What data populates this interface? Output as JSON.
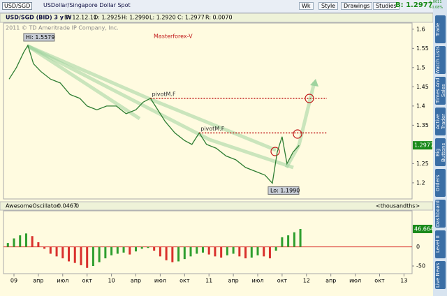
{
  "toolbar": {
    "symbol": "USD/SGD",
    "description": "USDollar/Singapore Dollar Spot",
    "buttons": [
      "Wk",
      "Style",
      "Drawings",
      "Studies"
    ],
    "bid": "B: 1.2977",
    "change": "+.0011",
    "change_pct": "+0.08%"
  },
  "side_tabs": [
    "Trade",
    "Watch Lists",
    "Times And Sales",
    "Active Trader",
    "Big Buttons",
    "Orders",
    "Dashboard",
    "Level II",
    "Live News"
  ],
  "chart_data": [
    {
      "type": "line",
      "title": "Masterforex-V",
      "header": [
        "USD/SGD (BID) 3 y W",
        "D: 12.12.11",
        "O: 1.2925",
        "H: 1.2990",
        "L: 1.2920",
        "C: 1.2977",
        "R: 0.0070"
      ],
      "copyright": "2011 © TD Ameritrade IP Company, Inc.",
      "x": [
        -0.2,
        0.1,
        0.4,
        0.57,
        0.8,
        1.1,
        1.5,
        1.9,
        2.3,
        2.7,
        3.0,
        3.4,
        3.8,
        4.2,
        4.6,
        5.0,
        5.3,
        5.6,
        5.9,
        6.2,
        6.6,
        7.0,
        7.3,
        7.6,
        7.9,
        8.3,
        8.7,
        9.1,
        9.5,
        9.9,
        10.3,
        10.6,
        10.8,
        11.0,
        11.2,
        11.45,
        11.7
      ],
      "values": [
        1.47,
        1.5,
        1.54,
        1.5579,
        1.51,
        1.49,
        1.47,
        1.46,
        1.43,
        1.42,
        1.4,
        1.39,
        1.4,
        1.4,
        1.38,
        1.39,
        1.41,
        1.42,
        1.39,
        1.36,
        1.33,
        1.31,
        1.3,
        1.33,
        1.3,
        1.29,
        1.27,
        1.26,
        1.24,
        1.23,
        1.22,
        1.199,
        1.28,
        1.32,
        1.25,
        1.28,
        1.2977
      ],
      "color": "#2e7d32",
      "ylim": [
        1.158,
        1.616
      ],
      "yticks": [
        1.2,
        1.25,
        1.35,
        1.4,
        1.45,
        1.5,
        1.55,
        1.6
      ],
      "extremes": [
        {
          "label": "Hi: 1.5579",
          "x": 0.57,
          "value": 1.5579
        },
        {
          "label": "Lo: 1.1990",
          "x": 10.6,
          "value": 1.199
        }
      ],
      "pivots": [
        {
          "label": "pivotM.F",
          "x": 5.6,
          "value": 1.42
        },
        {
          "label": "pivotM.F",
          "x": 7.6,
          "value": 1.33
        }
      ]
    },
    {
      "type": "bar",
      "header": [
        "AwesomeOscillator",
        "0.0467",
        "0",
        "<thousandths>"
      ],
      "x": [
        -0.25,
        0,
        0.25,
        0.5,
        0.75,
        1,
        1.25,
        1.5,
        1.75,
        2,
        2.25,
        2.5,
        2.75,
        3,
        3.25,
        3.5,
        3.75,
        4,
        4.25,
        4.5,
        4.75,
        5,
        5.25,
        5.5,
        5.75,
        6,
        6.25,
        6.5,
        6.75,
        7,
        7.25,
        7.5,
        7.75,
        8,
        8.25,
        8.5,
        8.75,
        9,
        9.25,
        9.5,
        9.75,
        10,
        10.25,
        10.5,
        10.75,
        11,
        11.25,
        11.5,
        11.75
      ],
      "values": [
        10,
        22,
        30,
        35,
        28,
        12,
        -5,
        -18,
        -25,
        -30,
        -38,
        -42,
        -48,
        -55,
        -50,
        -40,
        -30,
        -22,
        -18,
        -15,
        -20,
        -12,
        -5,
        -3,
        -10,
        -25,
        -35,
        -40,
        -38,
        -32,
        -25,
        -18,
        -15,
        -20,
        -25,
        -28,
        -22,
        -18,
        -25,
        -30,
        -28,
        -22,
        -25,
        -30,
        -10,
        25,
        30,
        38,
        46.664
      ],
      "up_color": "#2e9e2e",
      "down_color": "#d9302c",
      "ylim": [
        -70,
        94
      ],
      "yticks": [
        -50,
        0
      ],
      "xticks": [
        {
          "value": 0,
          "label": "09"
        },
        {
          "value": 1,
          "label": "апр"
        },
        {
          "value": 2,
          "label": "июл"
        },
        {
          "value": 3,
          "label": "окт"
        },
        {
          "value": 4,
          "label": "10"
        },
        {
          "value": 5,
          "label": "апр"
        },
        {
          "value": 6,
          "label": "июл"
        },
        {
          "value": 7,
          "label": "окт"
        },
        {
          "value": 8,
          "label": "11"
        },
        {
          "value": 9,
          "label": "апр"
        },
        {
          "value": 10,
          "label": "июл"
        },
        {
          "value": 11,
          "label": "окт"
        },
        {
          "value": 12,
          "label": "12"
        },
        {
          "value": 13,
          "label": "апр"
        },
        {
          "value": 14,
          "label": "июл"
        },
        {
          "value": 15,
          "label": "окт"
        },
        {
          "value": 16,
          "label": "13"
        }
      ]
    }
  ]
}
